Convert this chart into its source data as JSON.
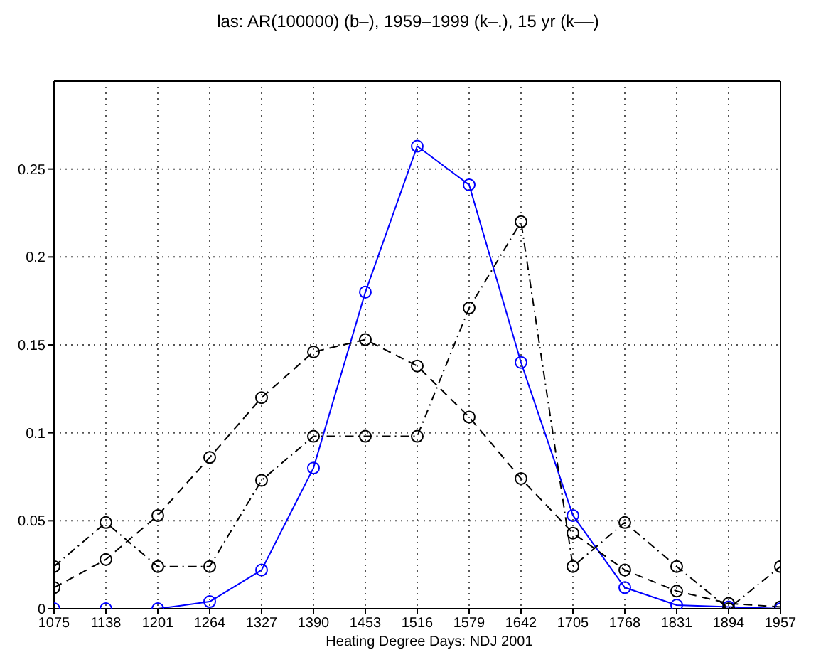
{
  "chart_data": {
    "type": "line",
    "title": "las: AR(100000) (b–), 1959–1999 (k–.), 15 yr (k––)",
    "xlabel": "Heating Degree Days: NDJ 2001",
    "x": [
      1075,
      1138,
      1201,
      1264,
      1327,
      1390,
      1453,
      1516,
      1579,
      1642,
      1705,
      1768,
      1831,
      1894,
      1957
    ],
    "series": [
      {
        "color": "#0000ff",
        "line_style": "solid",
        "values": [
          0,
          0,
          0,
          0.004,
          0.022,
          0.08,
          0.18,
          0.263,
          0.241,
          0.14,
          0.053,
          0.012,
          0.002,
          0.001,
          0
        ]
      },
      {
        "color": "#000000",
        "line_style": "dashdot",
        "values": [
          0.024,
          0.049,
          0.024,
          0.024,
          0.073,
          0.098,
          0.098,
          0.098,
          0.171,
          0.22,
          0.024,
          0.049,
          0.024,
          0,
          0.024
        ]
      },
      {
        "color": "#000000",
        "line_style": "dashed",
        "values": [
          0.012,
          0.028,
          0.053,
          0.086,
          0.12,
          0.146,
          0.153,
          0.138,
          0.109,
          0.074,
          0.043,
          0.022,
          0.01,
          0.003,
          0.001
        ]
      }
    ],
    "xlim": [
      1075,
      1957
    ],
    "xticks": [
      1075,
      1138,
      1201,
      1264,
      1327,
      1390,
      1453,
      1516,
      1579,
      1642,
      1705,
      1768,
      1831,
      1894,
      1957
    ],
    "ylim": [
      0,
      0.3
    ],
    "yticks": [
      0,
      0.05,
      0.1,
      0.15,
      0.2,
      0.25
    ],
    "grid": true,
    "marker": "circle",
    "legend": false
  }
}
